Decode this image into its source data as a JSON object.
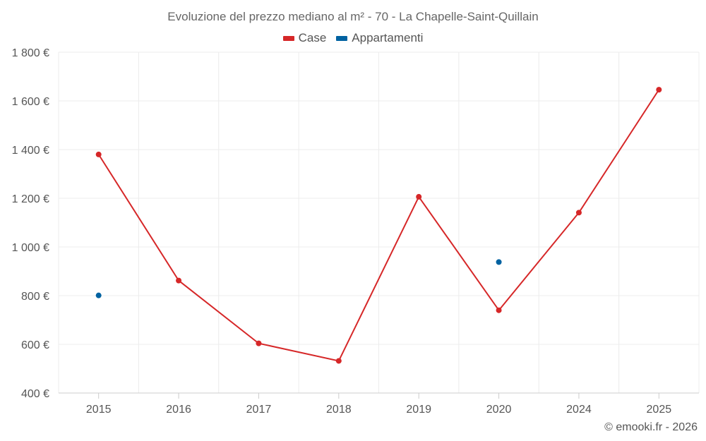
{
  "chart_data": {
    "type": "line",
    "title": "Evoluzione del prezzo mediano al m² - 70 - La Chapelle-Saint-Quillain",
    "categories": [
      "2015",
      "2016",
      "2017",
      "2018",
      "2019",
      "2020",
      "2024",
      "2025"
    ],
    "series": [
      {
        "name": "Case",
        "color": "#d62728",
        "style": "line",
        "values": [
          1380,
          862,
          604,
          532,
          1206,
          740,
          1141,
          1646
        ]
      },
      {
        "name": "Appartamenti",
        "color": "#0062a1",
        "style": "points",
        "values": [
          801,
          null,
          null,
          null,
          null,
          938,
          null,
          null
        ]
      }
    ],
    "ylim": [
      400,
      1800
    ],
    "yticks": [
      400,
      600,
      800,
      1000,
      1200,
      1400,
      1600,
      1800
    ],
    "ytick_labels": [
      "400 €",
      "600 €",
      "800 €",
      "1 000 €",
      "1 200 €",
      "1 400 €",
      "1 600 €",
      "1 800 €"
    ],
    "xlabel": "",
    "ylabel": "",
    "grid": true,
    "legend_position": "top-center"
  },
  "credit": "© emooki.fr - 2026"
}
